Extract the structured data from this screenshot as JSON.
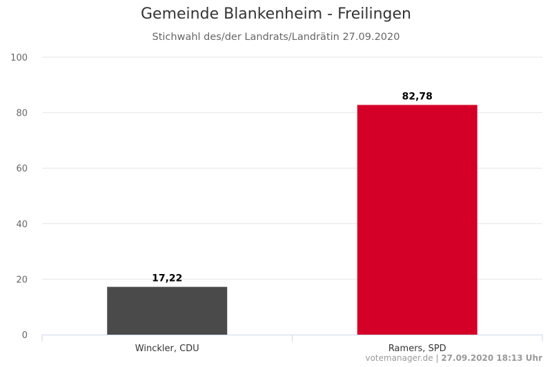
{
  "chart_data": {
    "type": "bar",
    "title": "Gemeinde Blankenheim - Freilingen",
    "subtitle": "Stichwahl des/der Landrats/Landrätin 27.09.2020",
    "categories": [
      "Winckler, CDU",
      "Ramers, SPD"
    ],
    "values": [
      17.22,
      82.78
    ],
    "data_labels": [
      "17,22",
      "82,78"
    ],
    "colors": [
      "#4a4a4a",
      "#d50027"
    ],
    "ylim": [
      0,
      100
    ],
    "yticks": [
      0,
      20,
      40,
      60,
      80,
      100
    ],
    "grid": true,
    "legend": "none",
    "xlabel": "",
    "ylabel": ""
  },
  "credits": {
    "source": "votemanager.de",
    "separator": " | ",
    "timestamp": "27.09.2020 18:13 Uhr"
  }
}
